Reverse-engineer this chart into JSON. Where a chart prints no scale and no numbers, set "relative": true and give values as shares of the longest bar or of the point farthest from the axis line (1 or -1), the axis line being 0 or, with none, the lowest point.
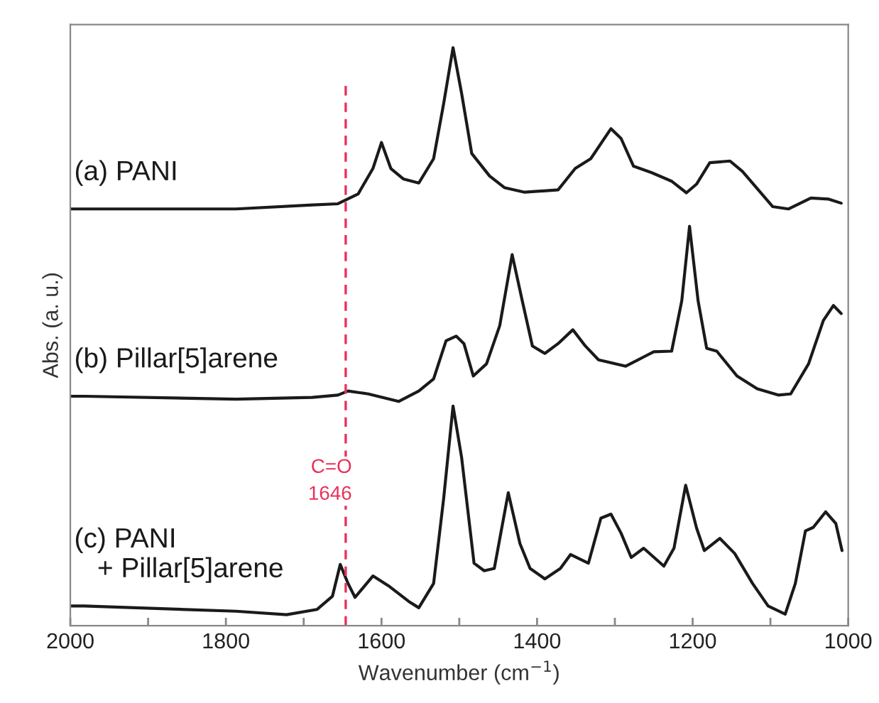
{
  "chart_data": {
    "type": "line",
    "relative": true,
    "xlabel": "Wavenumber (cm$^{−1}$)",
    "ylabel": "Abs. (a. u.)",
    "xlim": [
      2000,
      1000
    ],
    "xticks": [
      2000,
      {
        "value": 1900,
        "label": null
      },
      1800,
      {
        "value": 1700,
        "label": null
      },
      1600,
      {
        "value": 1500,
        "label": null
      },
      1400,
      {
        "value": 1300,
        "label": null
      },
      1200,
      {
        "value": 1100,
        "label": null
      },
      1000
    ],
    "grid": false,
    "legend": false,
    "tick_labels": "x",
    "line_style": "solid",
    "marker": "none",
    "ref_lines": [
      {
        "axis": "x",
        "value": 1646,
        "label": "C=O\n1646",
        "color": "#e8305a",
        "line_style": "dashed"
      }
    ],
    "series": [
      {
        "name": "(a) PANI",
        "color": "#1a1a1a",
        "x": [
          2000,
          1982,
          1787,
          1689,
          1656,
          1630,
          1611,
          1600,
          1588,
          1572,
          1552,
          1533,
          1520,
          1508,
          1497,
          1484,
          1461,
          1442,
          1416,
          1373,
          1351,
          1331,
          1305,
          1292,
          1276,
          1253,
          1227,
          1208,
          1195,
          1178,
          1152,
          1136,
          1097,
          1077,
          1048,
          1025,
          1009
        ],
        "values": [
          0.721,
          0.721,
          0.721,
          0.728,
          0.73,
          0.747,
          0.791,
          0.836,
          0.791,
          0.773,
          0.766,
          0.808,
          0.904,
          1.0,
          0.921,
          0.817,
          0.778,
          0.758,
          0.75,
          0.754,
          0.791,
          0.808,
          0.86,
          0.843,
          0.795,
          0.784,
          0.769,
          0.749,
          0.764,
          0.801,
          0.804,
          0.786,
          0.725,
          0.721,
          0.74,
          0.738,
          0.731
        ]
      },
      {
        "name": "(b) Pillar[5]arene",
        "color": "#1a1a1a",
        "x": [
          2000,
          1982,
          1787,
          1689,
          1656,
          1643,
          1617,
          1578,
          1552,
          1533,
          1517,
          1504,
          1494,
          1482,
          1465,
          1448,
          1432,
          1419,
          1406,
          1390,
          1373,
          1354,
          1338,
          1321,
          1286,
          1260,
          1250,
          1227,
          1214,
          1204,
          1193,
          1182,
          1169,
          1143,
          1117,
          1090,
          1074,
          1051,
          1032,
          1019,
          1009
        ],
        "values": [
          0.397,
          0.397,
          0.392,
          0.395,
          0.399,
          0.406,
          0.401,
          0.388,
          0.406,
          0.427,
          0.493,
          0.501,
          0.488,
          0.432,
          0.453,
          0.519,
          0.642,
          0.562,
          0.484,
          0.471,
          0.488,
          0.512,
          0.484,
          0.46,
          0.449,
          0.467,
          0.474,
          0.475,
          0.562,
          0.691,
          0.562,
          0.48,
          0.475,
          0.432,
          0.41,
          0.399,
          0.401,
          0.453,
          0.528,
          0.554,
          0.54
        ]
      },
      {
        "name": "(c) PANI\n   + Pillar[5]arene",
        "color": "#1a1a1a",
        "x": [
          2000,
          1982,
          1787,
          1722,
          1683,
          1663,
          1653,
          1643,
          1634,
          1611,
          1591,
          1565,
          1552,
          1533,
          1520,
          1508,
          1497,
          1481,
          1468,
          1455,
          1437,
          1422,
          1409,
          1390,
          1370,
          1357,
          1334,
          1318,
          1305,
          1292,
          1279,
          1263,
          1237,
          1224,
          1209,
          1195,
          1185,
          1165,
          1146,
          1123,
          1103,
          1081,
          1068,
          1055,
          1045,
          1029,
          1016,
          1008
        ],
        "values": [
          0.034,
          0.034,
          0.025,
          0.019,
          0.028,
          0.051,
          0.106,
          0.073,
          0.049,
          0.086,
          0.069,
          0.042,
          0.031,
          0.073,
          0.221,
          0.38,
          0.291,
          0.108,
          0.095,
          0.099,
          0.23,
          0.142,
          0.099,
          0.081,
          0.099,
          0.123,
          0.108,
          0.186,
          0.193,
          0.16,
          0.118,
          0.134,
          0.103,
          0.134,
          0.243,
          0.169,
          0.13,
          0.151,
          0.125,
          0.073,
          0.034,
          0.02,
          0.073,
          0.164,
          0.17,
          0.197,
          0.177,
          0.13
        ]
      }
    ]
  }
}
